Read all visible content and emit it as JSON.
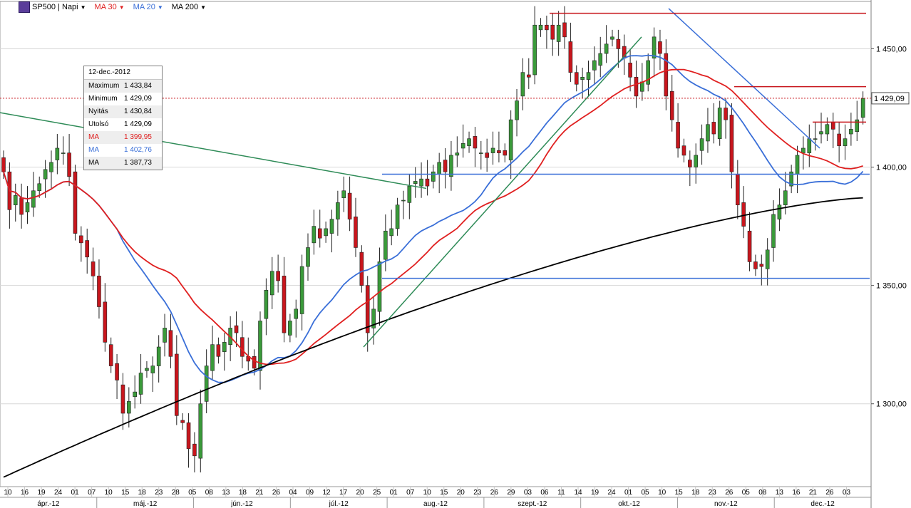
{
  "toolbar": {
    "instrument": "SP500 | Napi",
    "ma30": "MA 30",
    "ma20": "MA 20",
    "ma200": "MA 200"
  },
  "colors": {
    "up": "#3a9a3a",
    "down": "#c8161d",
    "ma30": "#e02020",
    "ma20": "#3a6fd8",
    "ma200": "#000000",
    "grid": "#d8d8d8",
    "trend_green": "#2e8b57"
  },
  "info_box": {
    "date": "12-dec.-2012",
    "rows": [
      {
        "label": "Maximum",
        "value": "1 433,84",
        "color": "#000000"
      },
      {
        "label": "Minimum",
        "value": "1 429,09",
        "color": "#000000"
      },
      {
        "label": "Nyitás",
        "value": "1 430,84",
        "color": "#000000"
      },
      {
        "label": "Utolsó",
        "value": "1 429,09",
        "color": "#000000"
      },
      {
        "label": "MA",
        "value": "1 399,95",
        "color": "#e02020"
      },
      {
        "label": "MA",
        "value": "1 402,76",
        "color": "#3a6fd8"
      },
      {
        "label": "MA",
        "value": "1 387,73",
        "color": "#000000"
      }
    ]
  },
  "chart_data": {
    "type": "candlestick",
    "y_range": [
      1265,
      1470
    ],
    "y_ticks": [
      {
        "value": 1300,
        "label": "1 300,00"
      },
      {
        "value": 1350,
        "label": "1 350,00"
      },
      {
        "value": 1400,
        "label": "1 400,00"
      },
      {
        "value": 1450,
        "label": "1 450,00"
      }
    ],
    "last_price": {
      "value": 1429.09,
      "label": "1 429,09"
    },
    "day_labels": [
      "10",
      "16",
      "19",
      "24",
      "01",
      "07",
      "10",
      "15",
      "18",
      "23",
      "28",
      "05",
      "08",
      "13",
      "18",
      "21",
      "26",
      "04",
      "09",
      "12",
      "17",
      "20",
      "25",
      "01",
      "07",
      "10",
      "15",
      "20",
      "23",
      "26",
      "29",
      "03",
      "06",
      "11",
      "14",
      "19",
      "24",
      "01",
      "05",
      "10",
      "15",
      "18",
      "23",
      "26",
      "05",
      "08",
      "13",
      "16",
      "21",
      "26",
      "03"
    ],
    "month_labels": [
      "ápr.-12",
      "máj.-12",
      "jún.-12",
      "júl.-12",
      "aug.-12",
      "szept.-12",
      "okt.-12",
      "nov.-12",
      "dec.-12"
    ],
    "closes": [
      1398,
      1382,
      1388,
      1380,
      1385,
      1390,
      1393,
      1399,
      1402,
      1408,
      1406,
      1396,
      1372,
      1368,
      1362,
      1354,
      1341,
      1326,
      1316,
      1310,
      1296,
      1301,
      1305,
      1313,
      1315,
      1316,
      1324,
      1332,
      1320,
      1295,
      1292,
      1281,
      1278,
      1300,
      1316,
      1325,
      1320,
      1326,
      1332,
      1330,
      1320,
      1318,
      1315,
      1335,
      1348,
      1356,
      1352,
      1330,
      1335,
      1340,
      1358,
      1366,
      1375,
      1370,
      1374,
      1378,
      1385,
      1390,
      1378,
      1366,
      1350,
      1330,
      1340,
      1360,
      1373,
      1374,
      1384,
      1386,
      1392,
      1394,
      1395,
      1392,
      1398,
      1402,
      1398,
      1405,
      1406,
      1410,
      1412,
      1408,
      1406,
      1404,
      1408,
      1406,
      1405,
      1420,
      1428,
      1440,
      1438,
      1460,
      1460,
      1458,
      1454,
      1460,
      1455,
      1440,
      1435,
      1438,
      1440,
      1445,
      1448,
      1452,
      1455,
      1450,
      1446,
      1438,
      1430,
      1436,
      1445,
      1455,
      1448,
      1430,
      1420,
      1408,
      1405,
      1400,
      1405,
      1412,
      1418,
      1414,
      1425,
      1420,
      1398,
      1384,
      1375,
      1360,
      1357,
      1358,
      1365,
      1380,
      1384,
      1390,
      1398,
      1405,
      1408,
      1412,
      1412,
      1415,
      1418,
      1416,
      1409,
      1412,
      1416,
      1420,
      1429
    ],
    "series": [
      {
        "name": "MA 30"
      },
      {
        "name": "MA 20"
      },
      {
        "name": "MA 200"
      }
    ]
  }
}
